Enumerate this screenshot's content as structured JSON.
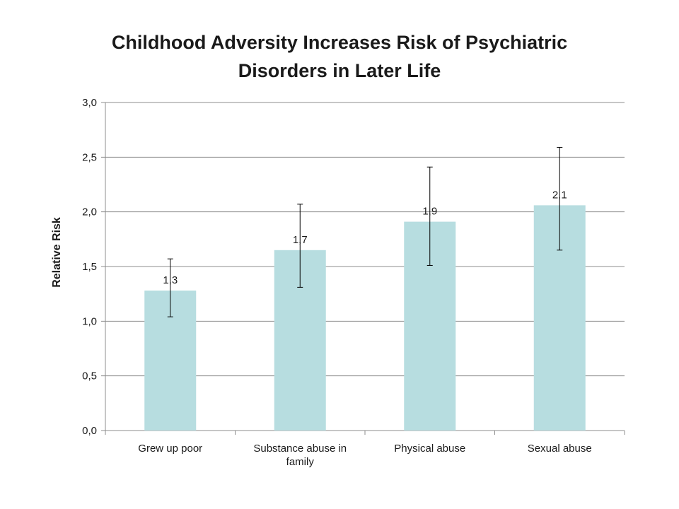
{
  "chart_data": {
    "type": "bar",
    "title_lines": [
      "Childhood Adversity Increases Risk of Psychiatric",
      "Disorders in Later Life"
    ],
    "ylabel": "Relative Risk",
    "xlabel": "",
    "categories": [
      [
        "Grew up poor"
      ],
      [
        "Substance abuse in",
        "family"
      ],
      [
        "Physical abuse"
      ],
      [
        "Sexual abuse"
      ]
    ],
    "values": [
      1.28,
      1.65,
      1.91,
      2.06
    ],
    "data_labels": [
      "1,3",
      "1,7",
      "1,9",
      "2,1"
    ],
    "error_bars": [
      {
        "low": 1.04,
        "high": 1.57
      },
      {
        "low": 1.31,
        "high": 2.07
      },
      {
        "low": 1.51,
        "high": 2.41
      },
      {
        "low": 1.65,
        "high": 2.59
      }
    ],
    "ylim": [
      0,
      3.0
    ],
    "yticks": [
      0,
      0.5,
      1.0,
      1.5,
      2.0,
      2.5,
      3.0
    ],
    "ytick_labels": [
      "0,0",
      "0,5",
      "1,0",
      "1,5",
      "2,0",
      "2,5",
      "3,0"
    ],
    "grid": true,
    "legend": "none",
    "colors": {
      "bar": "#b7dde0",
      "grid": "#8c8c8c",
      "axis": "#8c8c8c",
      "error": "#000000"
    }
  }
}
